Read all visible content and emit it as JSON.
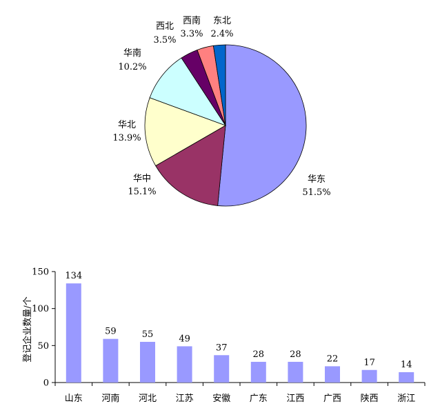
{
  "chart_data": [
    {
      "type": "pie",
      "categories": [
        "华东",
        "华中",
        "华北",
        "华南",
        "西北",
        "西南",
        "东北"
      ],
      "values": [
        51.5,
        15.1,
        13.9,
        10.2,
        3.5,
        3.3,
        2.4
      ],
      "value_labels": [
        "51.5%",
        "15.1%",
        "13.9%",
        "10.2%",
        "3.5%",
        "3.3%",
        "2.4%"
      ],
      "colors": [
        "#9999FF",
        "#993366",
        "#FFFFCC",
        "#CCFFFF",
        "#660066",
        "#FF8080",
        "#0066CC"
      ],
      "start_angle_deg": 0,
      "direction": "clockwise",
      "title": ""
    },
    {
      "type": "bar",
      "categories": [
        "山东",
        "河南",
        "河北",
        "江苏",
        "安徽",
        "广东",
        "江西",
        "广西",
        "陕西",
        "浙江"
      ],
      "values": [
        134,
        59,
        55,
        49,
        37,
        28,
        28,
        22,
        17,
        14
      ],
      "ylabel": "登记企业数量/个",
      "xlabel": "",
      "ylim": [
        0,
        150
      ],
      "yticks": [
        0,
        50,
        100,
        150
      ],
      "bar_color": "#9999FF",
      "grid": false,
      "title": ""
    }
  ]
}
